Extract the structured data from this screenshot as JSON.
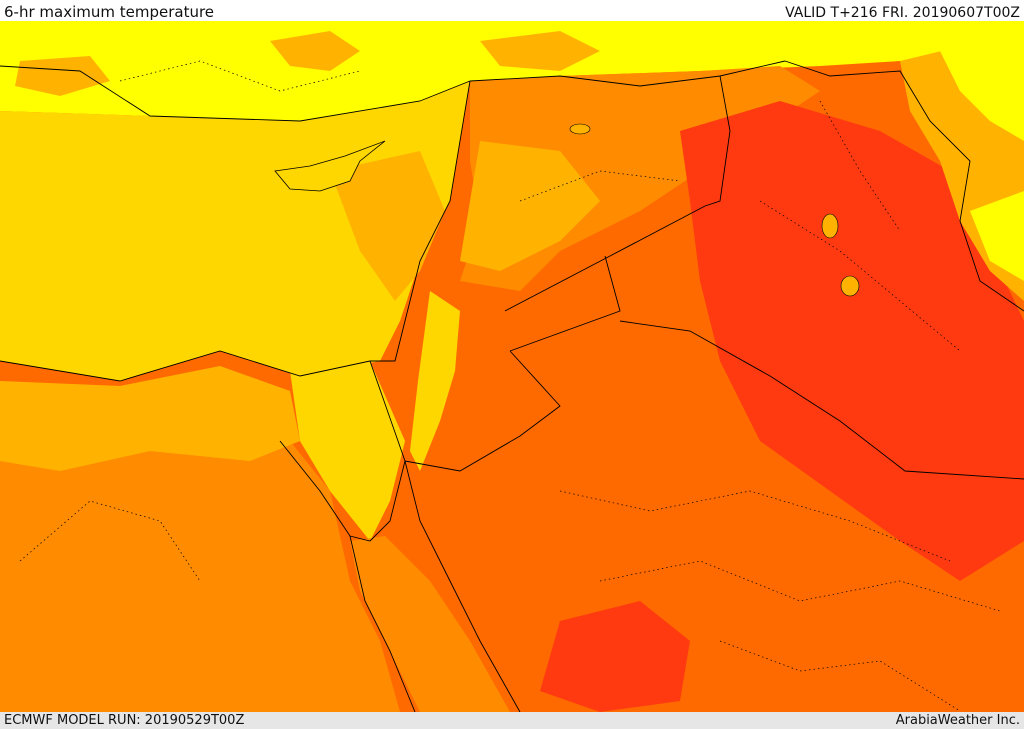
{
  "header": {
    "title": "6-hr maximum temperature",
    "valid": "VALID T+216 FRI. 20190607T00Z"
  },
  "footer": {
    "model_run": "ECMWF MODEL RUN: 20190529T00Z",
    "credit": "ArabiaWeather Inc."
  },
  "colors": {
    "sea": "#ffd700",
    "warm1": "#ffb300",
    "warm2": "#ff8c00",
    "hot1": "#ff6a00",
    "hot2": "#ff3a10",
    "cool": "#ffff00",
    "border": "#000000"
  }
}
